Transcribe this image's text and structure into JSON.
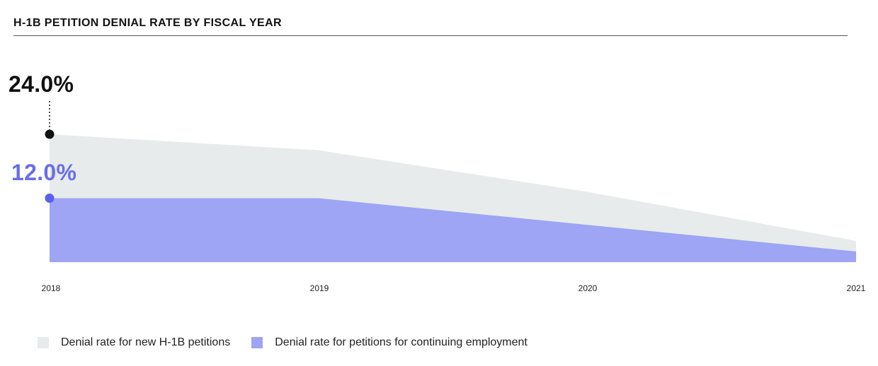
{
  "chart_data": {
    "type": "area",
    "title": "H-1B PETITION DENIAL RATE BY FISCAL YEAR",
    "categories": [
      "2018",
      "2019",
      "2020",
      "2021"
    ],
    "ylim": [
      0,
      24.0
    ],
    "grid": false,
    "legend_position": "bottom-left",
    "series": [
      {
        "name": "Denial rate for new H-1B petitions",
        "values": [
          24.0,
          21.0,
          13.2,
          4.0
        ],
        "color": "#e7ebeb"
      },
      {
        "name": "Denial rate for petitions for continuing employment",
        "values": [
          12.0,
          12.0,
          7.0,
          2.0
        ],
        "color": "#9da5f4"
      }
    ],
    "annotations": [
      {
        "label": "24.0%",
        "series": 0,
        "category": "2018",
        "color": "#111111"
      },
      {
        "label": "12.0%",
        "series": 1,
        "category": "2018",
        "color": "#6a6ee8"
      }
    ]
  }
}
